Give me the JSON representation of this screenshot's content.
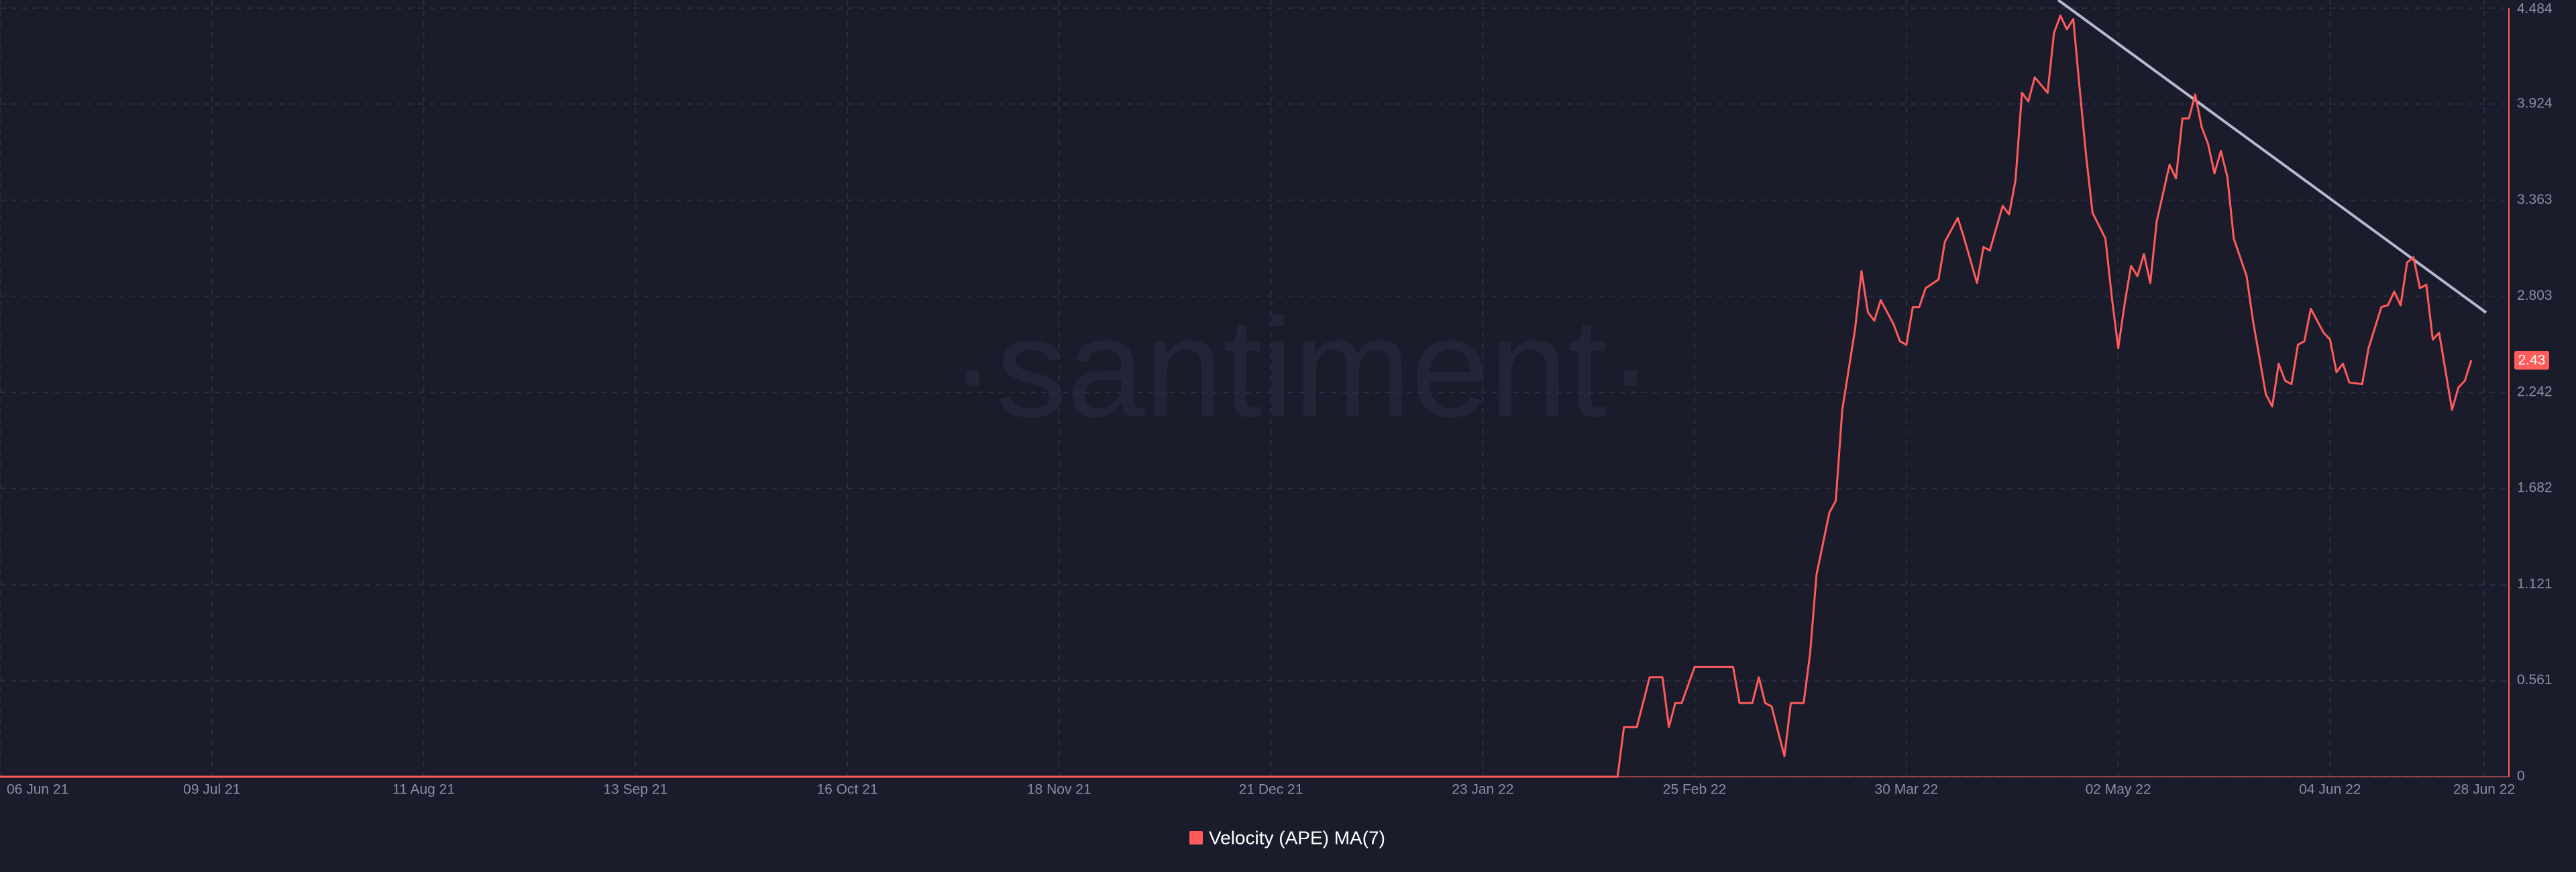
{
  "chart_data": {
    "type": "line",
    "watermark": "·santiment·",
    "x": [
      "2021-06-06",
      "2022-02-13",
      "2022-02-14",
      "2022-02-16",
      "2022-02-18",
      "2022-02-20",
      "2022-02-21",
      "2022-02-22",
      "2022-02-23",
      "2022-02-25",
      "2022-03-03",
      "2022-03-04",
      "2022-03-06",
      "2022-03-07",
      "2022-03-08",
      "2022-03-09",
      "2022-03-11",
      "2022-03-12",
      "2022-03-14",
      "2022-03-15",
      "2022-03-16",
      "2022-03-18",
      "2022-03-19",
      "2022-03-20",
      "2022-03-22",
      "2022-03-23",
      "2022-03-24",
      "2022-03-25",
      "2022-03-26",
      "2022-03-28",
      "2022-03-29",
      "2022-03-30",
      "2022-03-31",
      "2022-04-01",
      "2022-04-02",
      "2022-04-04",
      "2022-04-05",
      "2022-04-07",
      "2022-04-08",
      "2022-04-10",
      "2022-04-11",
      "2022-04-12",
      "2022-04-14",
      "2022-04-15",
      "2022-04-16",
      "2022-04-17",
      "2022-04-18",
      "2022-04-19",
      "2022-04-21",
      "2022-04-22",
      "2022-04-23",
      "2022-04-24",
      "2022-04-25",
      "2022-04-26",
      "2022-04-27",
      "2022-04-28",
      "2022-04-30",
      "2022-05-01",
      "2022-05-02",
      "2022-05-03",
      "2022-05-04",
      "2022-05-05",
      "2022-05-06",
      "2022-05-07",
      "2022-05-08",
      "2022-05-10",
      "2022-05-11",
      "2022-05-12",
      "2022-05-13",
      "2022-05-14",
      "2022-05-15",
      "2022-05-16",
      "2022-05-17",
      "2022-05-18",
      "2022-05-19",
      "2022-05-20",
      "2022-05-22",
      "2022-05-23",
      "2022-05-25",
      "2022-05-26",
      "2022-05-27",
      "2022-05-28",
      "2022-05-29",
      "2022-05-30",
      "2022-05-31",
      "2022-06-01",
      "2022-06-02",
      "2022-06-03",
      "2022-06-04",
      "2022-06-05",
      "2022-06-06",
      "2022-06-07",
      "2022-06-09",
      "2022-06-10",
      "2022-06-12",
      "2022-06-13",
      "2022-06-14",
      "2022-06-15",
      "2022-06-16",
      "2022-06-17",
      "2022-06-18",
      "2022-06-19",
      "2022-06-20",
      "2022-06-21",
      "2022-06-23",
      "2022-06-24",
      "2022-06-25",
      "2022-06-26"
    ],
    "series": [
      {
        "name": "Velocity (APE) MA(7)",
        "color": "#ff5b5b",
        "values": [
          0,
          0,
          0.29,
          0.29,
          0.58,
          0.58,
          0.29,
          0.43,
          0.43,
          0.64,
          0.64,
          0.43,
          0.43,
          0.58,
          0.43,
          0.41,
          0.12,
          0.43,
          0.43,
          0.72,
          1.18,
          1.54,
          1.61,
          2.14,
          2.61,
          2.95,
          2.71,
          2.66,
          2.78,
          2.64,
          2.54,
          2.52,
          2.74,
          2.74,
          2.85,
          2.9,
          3.12,
          3.26,
          3.14,
          2.88,
          3.09,
          3.07,
          3.33,
          3.28,
          3.48,
          3.99,
          3.94,
          4.08,
          3.99,
          4.34,
          4.44,
          4.36,
          4.42,
          4.01,
          3.62,
          3.29,
          3.14,
          2.8,
          2.5,
          2.76,
          2.98,
          2.92,
          3.05,
          2.88,
          3.24,
          3.57,
          3.49,
          3.84,
          3.84,
          3.98,
          3.79,
          3.69,
          3.52,
          3.65,
          3.5,
          3.14,
          2.92,
          2.66,
          2.23,
          2.16,
          2.41,
          2.31,
          2.29,
          2.52,
          2.54,
          2.73,
          2.66,
          2.59,
          2.55,
          2.36,
          2.41,
          2.3,
          2.29,
          2.5,
          2.74,
          2.75,
          2.83,
          2.75,
          3.0,
          3.03,
          2.85,
          2.87,
          2.55,
          2.59,
          2.14,
          2.27,
          2.31,
          2.43
        ]
      }
    ],
    "xlim": [
      "2021-06-06",
      "2022-06-28"
    ],
    "xticks": [
      {
        "value": "2021-06-06",
        "label": "06 Jun 21"
      },
      {
        "value": "2021-07-09",
        "label": "09 Jul 21"
      },
      {
        "value": "2021-08-11",
        "label": "11 Aug 21"
      },
      {
        "value": "2021-09-13",
        "label": "13 Sep 21"
      },
      {
        "value": "2021-10-16",
        "label": "16 Oct 21"
      },
      {
        "value": "2021-11-18",
        "label": "18 Nov 21"
      },
      {
        "value": "2021-12-21",
        "label": "21 Dec 21"
      },
      {
        "value": "2022-01-23",
        "label": "23 Jan 22"
      },
      {
        "value": "2022-02-25",
        "label": "25 Feb 22"
      },
      {
        "value": "2022-03-30",
        "label": "30 Mar 22"
      },
      {
        "value": "2022-05-02",
        "label": "02 May 22"
      },
      {
        "value": "2022-06-04",
        "label": "04 Jun 22"
      },
      {
        "value": "2022-06-28",
        "label": "28 Jun 22"
      }
    ],
    "ylim": [
      0,
      4.484
    ],
    "yticks": [
      0,
      0.561,
      1.121,
      1.682,
      2.242,
      2.803,
      3.363,
      3.924,
      4.484
    ],
    "grid": true
  }
}
